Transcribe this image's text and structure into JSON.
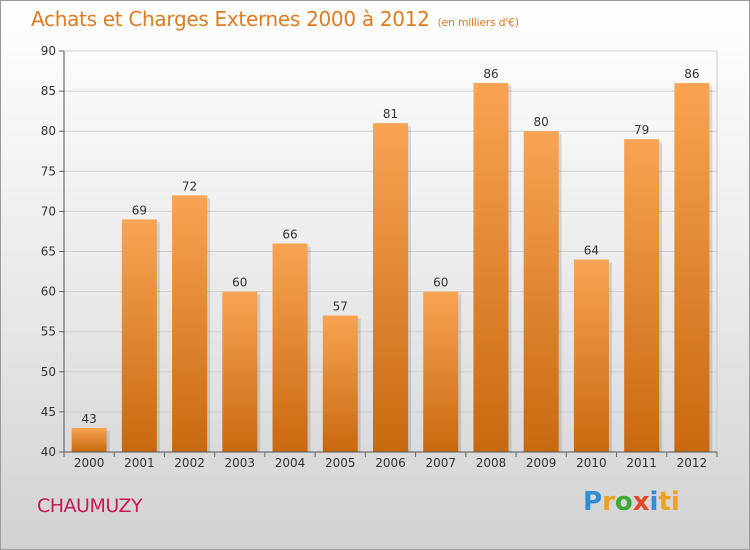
{
  "header": {
    "title": "Achats et Charges Externes 2000 à 2012",
    "subtitle": "(en milliers d'€)"
  },
  "footer": {
    "commune": "CHAUMUZY",
    "logo": [
      "P",
      "r",
      "o",
      "x",
      "i",
      "ti"
    ]
  },
  "colors": {
    "bar_top": "#f8a453",
    "bar_bottom": "#c9690f",
    "title": "#e07a1f",
    "commune": "#c8185c"
  },
  "chart_data": {
    "type": "bar",
    "categories": [
      "2000",
      "2001",
      "2002",
      "2003",
      "2004",
      "2005",
      "2006",
      "2007",
      "2008",
      "2009",
      "2010",
      "2011",
      "2012"
    ],
    "values": [
      43,
      69,
      72,
      60,
      66,
      57,
      81,
      60,
      86,
      80,
      64,
      79,
      86
    ],
    "ylim": [
      40,
      90
    ],
    "yticks": [
      40,
      45,
      50,
      55,
      60,
      65,
      70,
      75,
      80,
      85,
      90
    ],
    "grid": true,
    "legend": "none"
  }
}
